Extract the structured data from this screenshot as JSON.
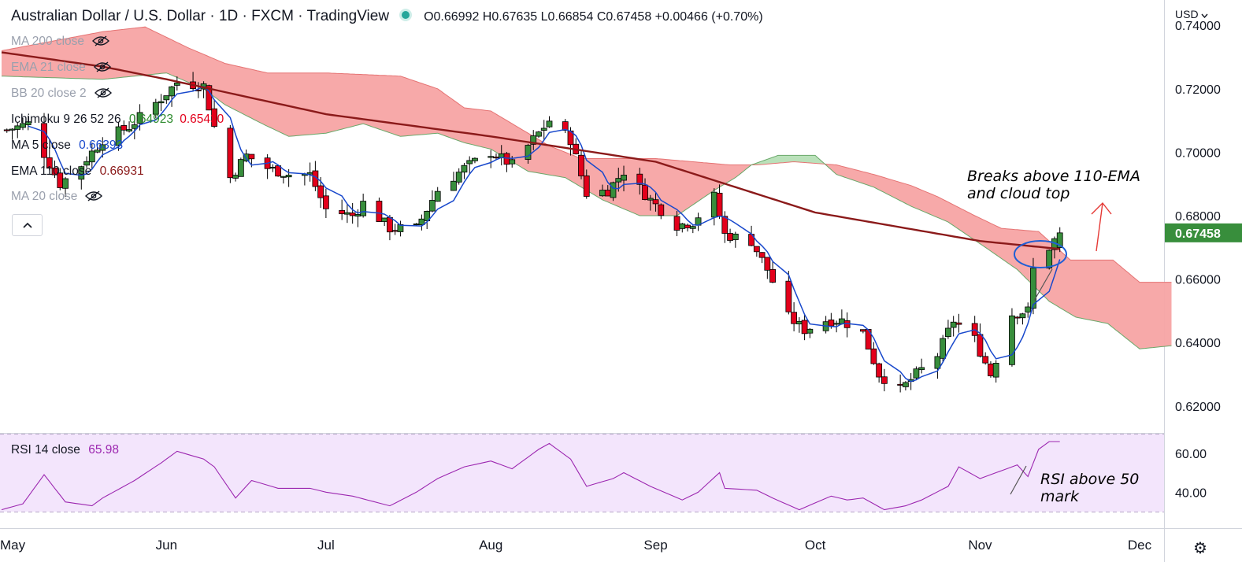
{
  "header": {
    "title": "Australian Dollar / U.S. Dollar · 1D · FXCM · TradingView",
    "ohlc": "O0.66992 H0.67635 L0.66854 C0.67458 +0.00466 (+0.70%)"
  },
  "legend": {
    "ma200": "MA 200 close",
    "ema21": "EMA 21 close",
    "bb": "BB 20 close 2",
    "ichimoku": {
      "label": "Ichimoku 9 26 52 26",
      "v1": "0.64923",
      "v2": "0.65430"
    },
    "ma5": {
      "label": "MA 5 close",
      "value": "0.66393"
    },
    "ema110": {
      "label": "EMA 110 close",
      "value": "0.66931"
    },
    "ma20": "MA 20 close",
    "collapse": "^"
  },
  "rsi": {
    "label": "RSI 14 close",
    "value": "65.98"
  },
  "currency": "USD",
  "price_label": "0.67458",
  "annotations": {
    "breaks_line1": "Breaks above 110-EMA",
    "breaks_line2": "and cloud top",
    "rsi_line1": "RSI above 50",
    "rsi_line2": "mark"
  },
  "colors": {
    "up": "#388e3c",
    "down": "#e3001b",
    "ema110": "#8b1a1a",
    "ma5": "#1848cc",
    "cloud_bear": "#f7a4a4",
    "cloud_bull": "#b6dfb6",
    "rsi_line": "#9c27b0",
    "rsi_band": "#f3e5fc"
  },
  "chart_data": {
    "type": "candlestick",
    "symbol": "AUDUSD",
    "timeframe": "1D",
    "price_axis": {
      "min": 0.612,
      "max": 0.748,
      "ticks": [
        "0.74000",
        "0.72000",
        "0.70000",
        "0.68000",
        "0.66000",
        "0.64000",
        "0.62000"
      ]
    },
    "rsi_axis": {
      "min": 28,
      "max": 68,
      "ticks": [
        "60.00",
        "40.00"
      ]
    },
    "x_axis": {
      "start": "2022-05-01",
      "end": "2022-12-01",
      "ticks": [
        "May",
        "Jun",
        "Jul",
        "Aug",
        "Sep",
        "Oct",
        "Nov",
        "Dec"
      ],
      "tick_dates": [
        "2022-05-01",
        "2022-06-01",
        "2022-07-01",
        "2022-08-01",
        "2022-09-01",
        "2022-10-01",
        "2022-11-01",
        "2022-12-01"
      ]
    },
    "close_anchors": [
      [
        "2022-05-02",
        0.707
      ],
      [
        "2022-05-06",
        0.709
      ],
      [
        "2022-05-12",
        0.69
      ],
      [
        "2022-05-16",
        0.696
      ],
      [
        "2022-05-20",
        0.704
      ],
      [
        "2022-05-25",
        0.708
      ],
      [
        "2022-05-31",
        0.717
      ],
      [
        "2022-06-03",
        0.722
      ],
      [
        "2022-06-08",
        0.721
      ],
      [
        "2022-06-10",
        0.708
      ],
      [
        "2022-06-13",
        0.692
      ],
      [
        "2022-06-16",
        0.699
      ],
      [
        "2022-06-20",
        0.695
      ],
      [
        "2022-06-24",
        0.693
      ],
      [
        "2022-06-28",
        0.693
      ],
      [
        "2022-07-01",
        0.682
      ],
      [
        "2022-07-06",
        0.68
      ],
      [
        "2022-07-08",
        0.684
      ],
      [
        "2022-07-13",
        0.676
      ],
      [
        "2022-07-18",
        0.676
      ],
      [
        "2022-07-22",
        0.688
      ],
      [
        "2022-07-27",
        0.695
      ],
      [
        "2022-08-01",
        0.7
      ],
      [
        "2022-08-05",
        0.696
      ],
      [
        "2022-08-10",
        0.706
      ],
      [
        "2022-08-12",
        0.71
      ],
      [
        "2022-08-16",
        0.704
      ],
      [
        "2022-08-19",
        0.687
      ],
      [
        "2022-08-23",
        0.688
      ],
      [
        "2022-08-26",
        0.694
      ],
      [
        "2022-08-31",
        0.685
      ],
      [
        "2022-09-05",
        0.677
      ],
      [
        "2022-09-08",
        0.678
      ],
      [
        "2022-09-12",
        0.686
      ],
      [
        "2022-09-14",
        0.674
      ],
      [
        "2022-09-19",
        0.672
      ],
      [
        "2022-09-22",
        0.663
      ],
      [
        "2022-09-26",
        0.648
      ],
      [
        "2022-09-29",
        0.644
      ],
      [
        "2022-10-03",
        0.647
      ],
      [
        "2022-10-06",
        0.647
      ],
      [
        "2022-10-10",
        0.643
      ],
      [
        "2022-10-13",
        0.63
      ],
      [
        "2022-10-17",
        0.625
      ],
      [
        "2022-10-20",
        0.63
      ],
      [
        "2022-10-24",
        0.636
      ],
      [
        "2022-10-27",
        0.647
      ],
      [
        "2022-10-31",
        0.641
      ],
      [
        "2022-11-03",
        0.63
      ],
      [
        "2022-11-07",
        0.649
      ],
      [
        "2022-11-10",
        0.65
      ],
      [
        "2022-11-11",
        0.663
      ],
      [
        "2022-11-14",
        0.67
      ],
      [
        "2022-11-16",
        0.6745
      ]
    ],
    "ema110_anchors": [
      [
        "2022-05-01",
        0.7315
      ],
      [
        "2022-05-20",
        0.727
      ],
      [
        "2022-06-01",
        0.723
      ],
      [
        "2022-07-01",
        0.712
      ],
      [
        "2022-08-01",
        0.705
      ],
      [
        "2022-09-01",
        0.697
      ],
      [
        "2022-10-01",
        0.681
      ],
      [
        "2022-11-01",
        0.672
      ],
      [
        "2022-11-16",
        0.6695
      ]
    ],
    "cloud_a": [
      [
        "2022-05-01",
        0.732
      ],
      [
        "2022-05-20",
        0.738
      ],
      [
        "2022-05-28",
        0.7395
      ],
      [
        "2022-06-05",
        0.733
      ],
      [
        "2022-06-12",
        0.728
      ],
      [
        "2022-06-20",
        0.725
      ],
      [
        "2022-07-01",
        0.725
      ],
      [
        "2022-07-15",
        0.724
      ],
      [
        "2022-07-22",
        0.72
      ],
      [
        "2022-07-27",
        0.714
      ],
      [
        "2022-08-01",
        0.713
      ],
      [
        "2022-08-12",
        0.702
      ],
      [
        "2022-08-18",
        0.698
      ],
      [
        "2022-09-01",
        0.698
      ],
      [
        "2022-09-15",
        0.696
      ],
      [
        "2022-09-20",
        0.696
      ],
      [
        "2022-09-27",
        0.697
      ],
      [
        "2022-10-05",
        0.696
      ],
      [
        "2022-10-12",
        0.693
      ],
      [
        "2022-10-19",
        0.6895
      ],
      [
        "2022-10-24",
        0.686
      ],
      [
        "2022-10-31",
        0.68
      ],
      [
        "2022-11-05",
        0.676
      ],
      [
        "2022-11-12",
        0.675
      ],
      [
        "2022-11-18",
        0.666
      ],
      [
        "2022-11-26",
        0.666
      ],
      [
        "2022-12-01",
        0.659
      ],
      [
        "2022-12-07",
        0.659
      ]
    ],
    "cloud_b": [
      [
        "2022-05-01",
        0.724
      ],
      [
        "2022-05-20",
        0.723
      ],
      [
        "2022-06-01",
        0.725
      ],
      [
        "2022-06-08",
        0.72
      ],
      [
        "2022-06-12",
        0.715
      ],
      [
        "2022-06-19",
        0.709
      ],
      [
        "2022-06-24",
        0.705
      ],
      [
        "2022-07-01",
        0.706
      ],
      [
        "2022-07-08",
        0.709
      ],
      [
        "2022-07-15",
        0.705
      ],
      [
        "2022-07-22",
        0.706
      ],
      [
        "2022-07-27",
        0.703
      ],
      [
        "2022-08-01",
        0.701
      ],
      [
        "2022-08-08",
        0.694
      ],
      [
        "2022-08-15",
        0.692
      ],
      [
        "2022-08-22",
        0.685
      ],
      [
        "2022-08-29",
        0.68
      ],
      [
        "2022-09-05",
        0.68
      ],
      [
        "2022-09-12",
        0.688
      ],
      [
        "2022-09-16",
        0.692
      ],
      [
        "2022-09-19",
        0.696
      ],
      [
        "2022-09-24",
        0.699
      ],
      [
        "2022-10-01",
        0.699
      ],
      [
        "2022-10-05",
        0.693
      ],
      [
        "2022-10-12",
        0.689
      ],
      [
        "2022-10-19",
        0.683
      ],
      [
        "2022-10-26",
        0.678
      ],
      [
        "2022-11-02",
        0.67
      ],
      [
        "2022-11-08",
        0.663
      ],
      [
        "2022-11-14",
        0.653
      ],
      [
        "2022-11-19",
        0.648
      ],
      [
        "2022-11-25",
        0.646
      ],
      [
        "2022-12-01",
        0.638
      ],
      [
        "2022-12-07",
        0.639
      ]
    ],
    "rsi_anchors": [
      [
        "2022-05-01",
        31
      ],
      [
        "2022-05-05",
        34
      ],
      [
        "2022-05-09",
        49
      ],
      [
        "2022-05-13",
        35
      ],
      [
        "2022-05-18",
        33
      ],
      [
        "2022-05-20",
        37
      ],
      [
        "2022-05-26",
        46
      ],
      [
        "2022-05-31",
        55
      ],
      [
        "2022-06-03",
        61
      ],
      [
        "2022-06-08",
        57
      ],
      [
        "2022-06-10",
        53
      ],
      [
        "2022-06-14",
        37
      ],
      [
        "2022-06-17",
        46
      ],
      [
        "2022-06-22",
        42
      ],
      [
        "2022-06-28",
        42
      ],
      [
        "2022-07-01",
        40
      ],
      [
        "2022-07-06",
        38
      ],
      [
        "2022-07-13",
        33
      ],
      [
        "2022-07-18",
        40
      ],
      [
        "2022-07-22",
        47
      ],
      [
        "2022-07-27",
        53
      ],
      [
        "2022-08-01",
        56
      ],
      [
        "2022-08-05",
        52
      ],
      [
        "2022-08-10",
        62
      ],
      [
        "2022-08-12",
        65
      ],
      [
        "2022-08-16",
        57
      ],
      [
        "2022-08-19",
        43
      ],
      [
        "2022-08-24",
        47
      ],
      [
        "2022-08-26",
        50
      ],
      [
        "2022-08-31",
        43
      ],
      [
        "2022-09-06",
        36
      ],
      [
        "2022-09-09",
        40
      ],
      [
        "2022-09-13",
        50
      ],
      [
        "2022-09-14",
        42
      ],
      [
        "2022-09-20",
        41
      ],
      [
        "2022-09-23",
        37
      ],
      [
        "2022-09-28",
        31
      ],
      [
        "2022-10-04",
        38
      ],
      [
        "2022-10-07",
        36
      ],
      [
        "2022-10-10",
        37
      ],
      [
        "2022-10-14",
        31
      ],
      [
        "2022-10-18",
        33
      ],
      [
        "2022-10-21",
        36
      ],
      [
        "2022-10-26",
        43
      ],
      [
        "2022-10-28",
        53
      ],
      [
        "2022-11-01",
        47
      ],
      [
        "2022-11-04",
        50
      ],
      [
        "2022-11-08",
        54
      ],
      [
        "2022-11-10",
        48
      ],
      [
        "2022-11-12",
        62
      ],
      [
        "2022-11-14",
        66
      ],
      [
        "2022-11-16",
        66
      ]
    ]
  }
}
